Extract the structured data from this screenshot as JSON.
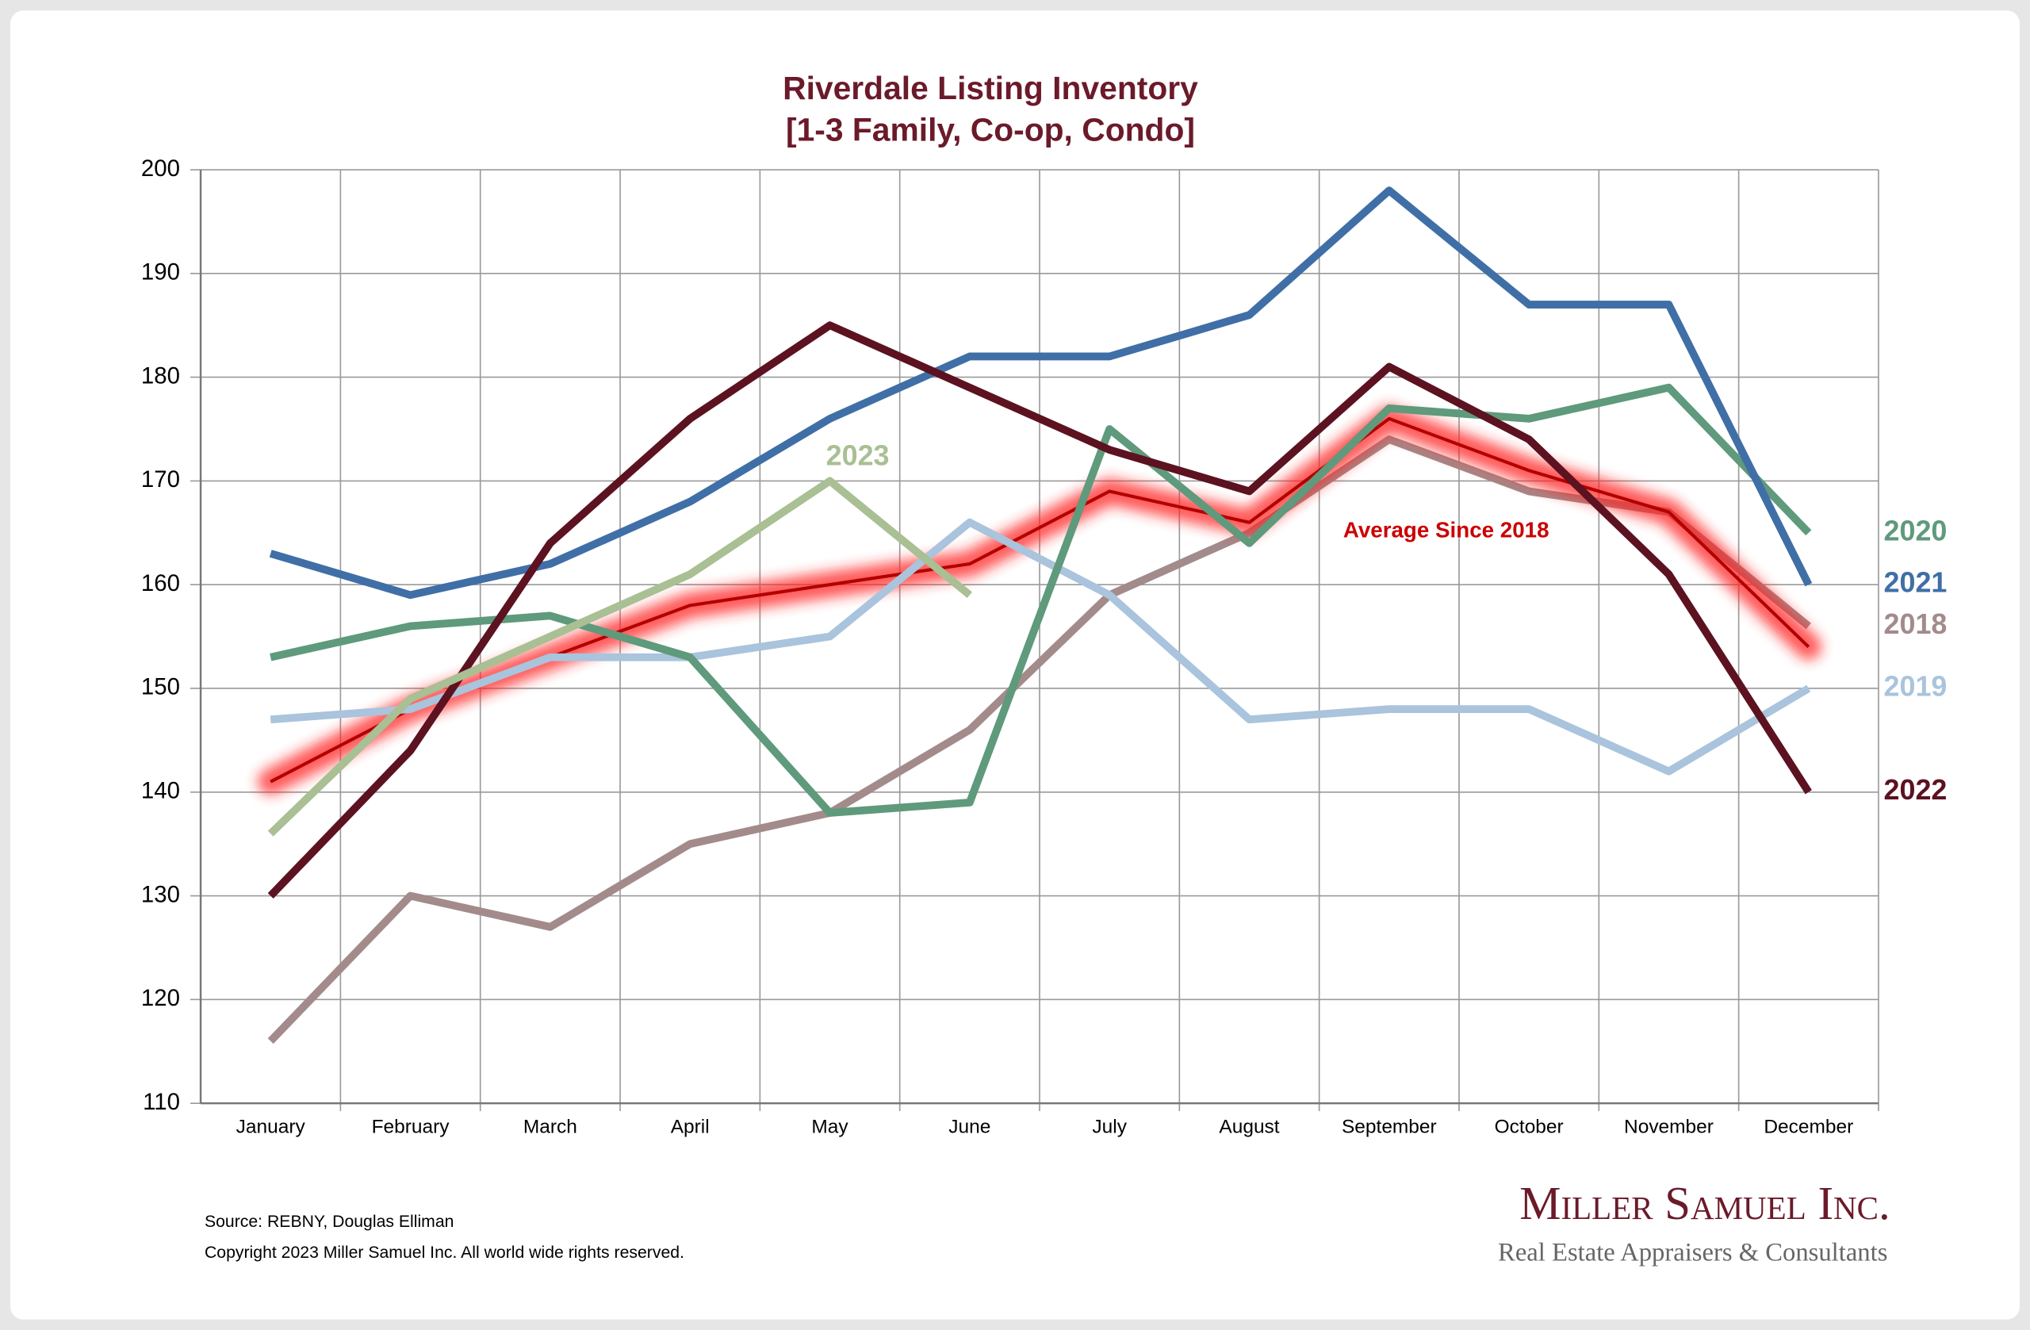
{
  "chart_data": {
    "type": "line",
    "title": "Riverdale Listing Inventory",
    "subtitle": "[1-3 Family, Co-op, Condo]",
    "categories": [
      "January",
      "February",
      "March",
      "April",
      "May",
      "June",
      "July",
      "August",
      "September",
      "October",
      "November",
      "December"
    ],
    "series": [
      {
        "name": "2018",
        "color": "#a38b8b",
        "values": [
          116,
          130,
          127,
          135,
          138,
          146,
          159,
          165,
          174,
          169,
          167,
          156
        ]
      },
      {
        "name": "Average  Since 2018",
        "color": "#b30000",
        "glow": true,
        "values": [
          141,
          148,
          153,
          158,
          160,
          162,
          169,
          166,
          176,
          171,
          167,
          154
        ]
      },
      {
        "name": "2019",
        "color": "#a9c4dc",
        "values": [
          147,
          148,
          153,
          153,
          155,
          166,
          159,
          147,
          148,
          148,
          142,
          150
        ]
      },
      {
        "name": "2020",
        "color": "#5e9a7b",
        "values": [
          153,
          156,
          157,
          153,
          138,
          139,
          175,
          164,
          177,
          176,
          179,
          165
        ]
      },
      {
        "name": "2021",
        "color": "#3f6fa6",
        "values": [
          163,
          159,
          162,
          168,
          176,
          182,
          182,
          186,
          198,
          187,
          187,
          160
        ]
      },
      {
        "name": "2022",
        "color": "#5c1220",
        "values": [
          130,
          144,
          164,
          176,
          185,
          179,
          173,
          169,
          181,
          174,
          161,
          140
        ]
      },
      {
        "name": "2023",
        "color": "#a9bf94",
        "values": [
          136,
          149,
          155,
          161,
          170,
          159,
          null,
          null,
          null,
          null,
          null,
          null
        ]
      }
    ],
    "ylim": [
      110,
      200
    ],
    "yticks": [
      110,
      120,
      130,
      140,
      150,
      160,
      170,
      180,
      190,
      200
    ],
    "grid": true,
    "source": "Source: REBNY, Douglas Elliman",
    "copyright": "Copyright 2023 Miller Samuel Inc.  All world wide rights reserved.",
    "logo": "Miller Samuel Inc.",
    "tagline": "Real Estate Appraisers & Consultants"
  }
}
